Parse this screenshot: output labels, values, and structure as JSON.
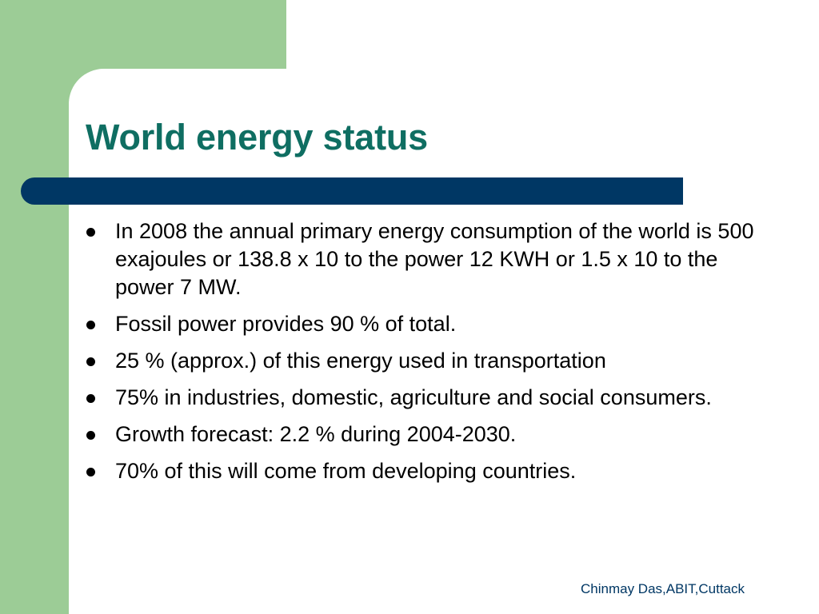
{
  "slide": {
    "title": "World energy status",
    "bullets": [
      "In 2008 the annual primary energy consumption of the world is 500 exajoules or 138.8 x 10 to the power 12 KWH or 1.5 x 10 to the power 7 MW.",
      "Fossil power provides 90 % of total.",
      "25 % (approx.) of this energy used in transportation",
      "75% in industries, domestic, agriculture and social consumers.",
      "Growth forecast: 2.2 % during 2004-2030.",
      "70% of this will come from developing countries."
    ],
    "footer": "Chinmay Das,ABIT,Cuttack"
  },
  "colors": {
    "background": "#ffffff",
    "green_panel": "#9ccc96",
    "title": "#0f6e62",
    "title_bar": "#003764",
    "body_text": "#000000",
    "footer_text": "#003764"
  },
  "icons": {
    "bullet": "bullet-dot-icon"
  }
}
